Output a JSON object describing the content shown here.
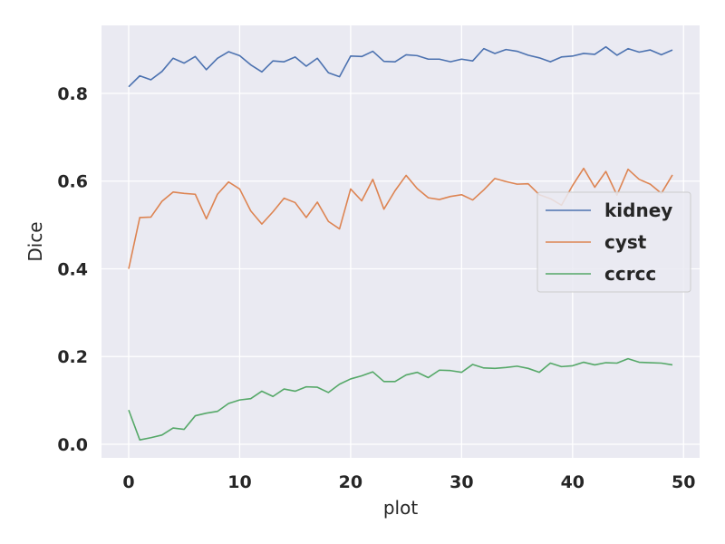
{
  "chart_data": {
    "type": "line",
    "xlabel": "plot",
    "ylabel": "Dice",
    "xlim": [
      -2.45,
      51.45
    ],
    "ylim": [
      -0.031,
      0.955
    ],
    "xticks": [
      0,
      10,
      20,
      30,
      40,
      50
    ],
    "xtick_labels": [
      "0",
      "10",
      "20",
      "30",
      "40",
      "50"
    ],
    "yticks": [
      0.0,
      0.2,
      0.4,
      0.6,
      0.8
    ],
    "ytick_labels": [
      "0.0",
      "0.2",
      "0.4",
      "0.6",
      "0.8"
    ],
    "grid": true,
    "legend_position": "center-right",
    "x": [
      0,
      1,
      2,
      3,
      4,
      5,
      6,
      7,
      8,
      9,
      10,
      11,
      12,
      13,
      14,
      15,
      16,
      17,
      18,
      19,
      20,
      21,
      22,
      23,
      24,
      25,
      26,
      27,
      28,
      29,
      30,
      31,
      32,
      33,
      34,
      35,
      36,
      37,
      38,
      39,
      40,
      41,
      42,
      43,
      44,
      45,
      46,
      47,
      48,
      49
    ],
    "series": [
      {
        "name": "kidney",
        "color": "#4c72b0",
        "values": [
          0.815,
          0.84,
          0.831,
          0.85,
          0.88,
          0.869,
          0.884,
          0.854,
          0.88,
          0.895,
          0.886,
          0.865,
          0.849,
          0.874,
          0.872,
          0.883,
          0.862,
          0.88,
          0.847,
          0.838,
          0.885,
          0.884,
          0.896,
          0.873,
          0.872,
          0.888,
          0.886,
          0.878,
          0.878,
          0.872,
          0.878,
          0.874,
          0.902,
          0.891,
          0.9,
          0.896,
          0.887,
          0.881,
          0.872,
          0.883,
          0.885,
          0.891,
          0.889,
          0.906,
          0.887,
          0.902,
          0.894,
          0.899,
          0.888,
          0.899
        ]
      },
      {
        "name": "cyst",
        "color": "#dd8452",
        "values": [
          0.4,
          0.517,
          0.518,
          0.554,
          0.575,
          0.572,
          0.57,
          0.514,
          0.57,
          0.598,
          0.582,
          0.532,
          0.502,
          0.53,
          0.561,
          0.551,
          0.517,
          0.552,
          0.508,
          0.491,
          0.582,
          0.555,
          0.604,
          0.536,
          0.578,
          0.613,
          0.583,
          0.562,
          0.558,
          0.565,
          0.569,
          0.557,
          0.58,
          0.606,
          0.599,
          0.593,
          0.594,
          0.569,
          0.56,
          0.545,
          0.59,
          0.629,
          0.586,
          0.622,
          0.568,
          0.627,
          0.604,
          0.593,
          0.572,
          0.614
        ]
      },
      {
        "name": "ccrcc",
        "color": "#55a868",
        "values": [
          0.078,
          0.01,
          0.015,
          0.021,
          0.037,
          0.034,
          0.065,
          0.071,
          0.075,
          0.093,
          0.101,
          0.104,
          0.121,
          0.109,
          0.126,
          0.121,
          0.131,
          0.13,
          0.118,
          0.137,
          0.149,
          0.156,
          0.165,
          0.143,
          0.143,
          0.158,
          0.164,
          0.152,
          0.169,
          0.168,
          0.164,
          0.182,
          0.174,
          0.173,
          0.175,
          0.178,
          0.173,
          0.164,
          0.185,
          0.177,
          0.179,
          0.187,
          0.181,
          0.186,
          0.185,
          0.195,
          0.187,
          0.186,
          0.185,
          0.181
        ]
      }
    ]
  }
}
